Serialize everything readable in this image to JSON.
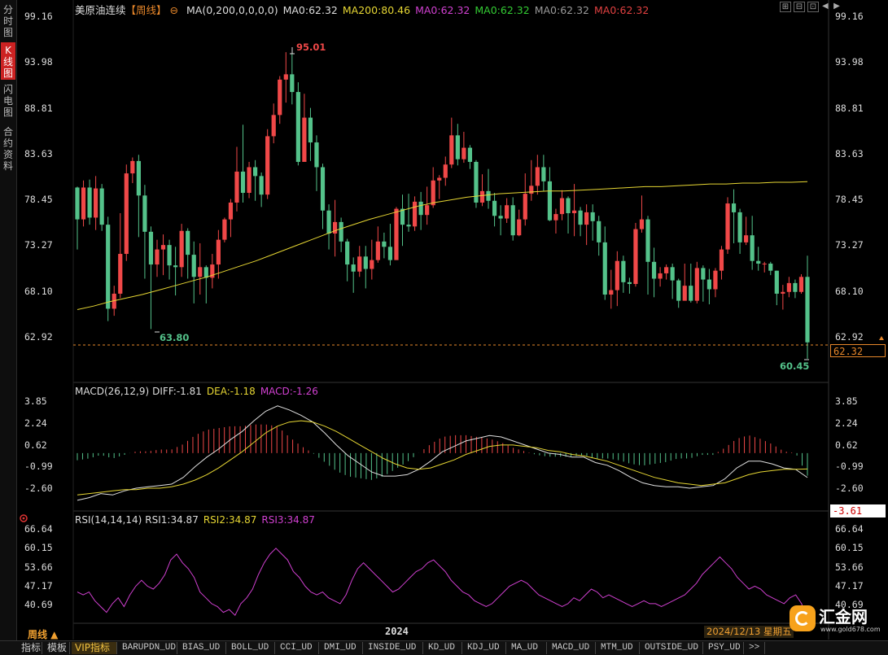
{
  "side_tabs": [
    {
      "label": "分时图",
      "active": false
    },
    {
      "label": "K线图",
      "active": true
    },
    {
      "label": "闪电图",
      "active": false
    },
    {
      "label": "合约资料",
      "active": false
    }
  ],
  "header": {
    "instrument": "美原油连续",
    "period_tag": "【周线】",
    "settings_icon": "⊖",
    "ma_items": [
      {
        "text": "MA(0,200,0,0,0,0)",
        "color": "#dddddd"
      },
      {
        "text": "MA0:62.32",
        "color": "#dddddd"
      },
      {
        "text": "MA200:80.46",
        "color": "#e6d633"
      },
      {
        "text": "MA0:62.32",
        "color": "#d040d0"
      },
      {
        "text": "MA0:62.32",
        "color": "#33cc33"
      },
      {
        "text": "MA0:62.32",
        "color": "#999999"
      },
      {
        "text": "MA0:62.32",
        "color": "#e04040"
      }
    ]
  },
  "window_controls": [
    "⊞",
    "⊟",
    "⊡",
    "◀",
    "▶"
  ],
  "price_axis": {
    "left": [
      "99.16",
      "93.98",
      "88.81",
      "83.63",
      "78.45",
      "73.27",
      "68.10",
      "62.92"
    ],
    "right": [
      "99.16",
      "93.98",
      "88.81",
      "83.63",
      "78.45",
      "73.27",
      "68.10",
      "62.92"
    ],
    "current": "62.32",
    "high_label": "95.01",
    "low_label_left": "63.80",
    "low_label_right": "60.45"
  },
  "macd": {
    "title": "MACD(26,12,9)",
    "diff": "DIFF:-1.81",
    "dea": "DEA:-1.18",
    "macd": "MACD:-1.26",
    "axis": [
      "3.85",
      "2.24",
      "0.62",
      "-0.99",
      "-2.60"
    ],
    "current": "-3.61"
  },
  "rsi": {
    "title": "RSI(14,14,14)",
    "rsi1": "RSI1:34.87",
    "rsi2": "RSI2:34.87",
    "rsi3": "RSI3:34.87",
    "axis_left": [
      "66.64",
      "60.15",
      "53.66",
      "47.17",
      "40.69"
    ],
    "axis_right": [
      "66.64",
      "60.15",
      "53.66",
      "47.17",
      "40.69"
    ]
  },
  "time_axis": {
    "period_button": "周线 ▲",
    "year_label": "2024",
    "date_label": "2024/12/13 星期五"
  },
  "bottom_tabs": [
    "指标",
    "模板",
    "VIP指标",
    "BARUPDN_UD",
    "BIAS_UD",
    "BOLL_UD",
    "CCI_UD",
    "DMI_UD",
    "INSIDE_UD",
    "KD_UD",
    "KDJ_UD",
    "MA_UD",
    "MACD_UD",
    "MTM_UD",
    "OUTSIDE_UD",
    "PSY_UD",
    ">>"
  ],
  "logo": {
    "name": "汇金网",
    "url_text": "www.gold678.com"
  },
  "colors": {
    "up": "#f04848",
    "down": "#54c28a",
    "ma200": "#e6d633",
    "diff": "#e0e0e0",
    "dea": "#e6d633",
    "rsi": "#d040d0",
    "price_line": "#e8872a"
  },
  "chart_data": {
    "type": "candlestick",
    "title": "美原油连续【周线】",
    "ylim": [
      60.45,
      99.16
    ],
    "candles": [
      [
        79.8,
        76.2,
        79.9,
        72.8
      ],
      [
        76.2,
        79.8,
        80.6,
        75.4
      ],
      [
        79.8,
        76.4,
        80.7,
        75.6
      ],
      [
        76.4,
        79.7,
        81.1,
        75.0
      ],
      [
        79.7,
        75.6,
        80.2,
        74.9
      ],
      [
        75.6,
        66.1,
        76.5,
        64.7
      ],
      [
        66.1,
        67.8,
        68.7,
        65.3
      ],
      [
        67.8,
        72.3,
        76.9,
        67.3
      ],
      [
        72.3,
        81.4,
        82.4,
        71.5
      ],
      [
        81.4,
        82.8,
        83.2,
        80.3
      ],
      [
        82.8,
        78.9,
        83.5,
        74.2
      ],
      [
        78.9,
        74.8,
        80.1,
        69.5
      ],
      [
        74.8,
        71.1,
        75.4,
        63.8
      ],
      [
        71.1,
        72.8,
        73.9,
        69.7
      ],
      [
        72.8,
        73.3,
        74.5,
        69.9
      ],
      [
        73.3,
        71.0,
        73.9,
        69.4
      ],
      [
        71.0,
        70.8,
        73.1,
        67.6
      ],
      [
        70.8,
        74.9,
        75.7,
        69.7
      ],
      [
        74.9,
        72.2,
        75.2,
        69.5
      ],
      [
        72.2,
        69.7,
        73.7,
        66.7
      ],
      [
        69.7,
        70.8,
        73.5,
        67.7
      ],
      [
        70.8,
        69.6,
        71.0,
        66.7
      ],
      [
        69.6,
        71.1,
        72.3,
        68.4
      ],
      [
        71.1,
        73.9,
        75.0,
        69.5
      ],
      [
        73.9,
        76.2,
        76.4,
        73.6
      ],
      [
        76.2,
        78.1,
        78.5,
        74.2
      ],
      [
        78.1,
        81.6,
        84.4,
        77.1
      ],
      [
        81.6,
        79.2,
        86.9,
        78.1
      ],
      [
        79.2,
        82.1,
        82.7,
        78.6
      ],
      [
        82.1,
        81.1,
        82.9,
        78.3
      ],
      [
        81.1,
        79.0,
        81.5,
        77.6
      ],
      [
        79.0,
        85.6,
        86.4,
        78.5
      ],
      [
        85.6,
        88.0,
        89.3,
        84.8
      ],
      [
        88.0,
        92.0,
        92.4,
        87.0
      ],
      [
        92.0,
        92.6,
        95.1,
        89.4
      ],
      [
        92.6,
        90.6,
        95.0,
        89.2
      ],
      [
        90.6,
        82.7,
        91.7,
        82.3
      ],
      [
        82.7,
        87.7,
        90.4,
        82.8
      ],
      [
        87.7,
        84.9,
        88.8,
        82.8
      ],
      [
        84.9,
        82.1,
        85.7,
        79.4
      ],
      [
        82.1,
        77.2,
        82.5,
        75.1
      ],
      [
        77.2,
        74.6,
        77.9,
        72.8
      ],
      [
        74.6,
        75.9,
        78.4,
        72.0
      ],
      [
        75.9,
        73.7,
        76.4,
        72.5
      ],
      [
        73.7,
        71.1,
        74.0,
        69.2
      ],
      [
        71.1,
        70.3,
        71.9,
        67.9
      ],
      [
        70.3,
        72.0,
        73.2,
        69.7
      ],
      [
        72.0,
        70.6,
        73.2,
        68.4
      ],
      [
        70.6,
        71.6,
        73.9,
        69.4
      ],
      [
        71.6,
        73.7,
        75.4,
        71.3
      ],
      [
        73.7,
        73.1,
        74.7,
        71.8
      ],
      [
        73.1,
        71.6,
        75.7,
        71.0
      ],
      [
        71.6,
        77.4,
        77.6,
        71.7
      ],
      [
        77.4,
        75.6,
        79.0,
        73.2
      ],
      [
        75.6,
        75.4,
        79.1,
        74.8
      ],
      [
        75.4,
        78.2,
        78.8,
        74.9
      ],
      [
        78.2,
        76.7,
        79.3,
        75.0
      ],
      [
        76.7,
        77.8,
        79.9,
        75.6
      ],
      [
        77.8,
        80.6,
        82.1,
        77.5
      ],
      [
        80.6,
        80.9,
        81.2,
        78.5
      ],
      [
        80.9,
        82.4,
        83.3,
        80.0
      ],
      [
        82.4,
        85.7,
        87.7,
        82.0
      ],
      [
        85.7,
        83.0,
        87.0,
        82.3
      ],
      [
        83.0,
        84.3,
        86.1,
        82.6
      ],
      [
        84.3,
        82.7,
        84.6,
        81.9
      ],
      [
        82.7,
        78.1,
        82.9,
        77.5
      ],
      [
        78.1,
        79.4,
        81.3,
        77.7
      ],
      [
        79.4,
        78.3,
        81.9,
        77.4
      ],
      [
        78.3,
        76.6,
        79.2,
        75.4
      ],
      [
        76.6,
        76.3,
        77.8,
        74.4
      ],
      [
        76.3,
        77.8,
        78.6,
        75.8
      ],
      [
        77.8,
        74.4,
        78.7,
        73.8
      ],
      [
        74.4,
        76.2,
        77.3,
        74.3
      ],
      [
        76.2,
        79.1,
        81.4,
        75.5
      ],
      [
        79.1,
        80.0,
        82.9,
        78.3
      ],
      [
        80.0,
        82.1,
        83.5,
        79.0
      ],
      [
        82.1,
        80.5,
        83.5,
        79.4
      ],
      [
        80.5,
        76.1,
        82.1,
        76.0
      ],
      [
        76.1,
        76.8,
        77.4,
        74.6
      ],
      [
        76.8,
        78.6,
        79.5,
        76.1
      ],
      [
        78.6,
        76.9,
        78.8,
        74.6
      ],
      [
        76.9,
        77.2,
        80.2,
        74.3
      ],
      [
        77.2,
        75.6,
        77.6,
        74.3
      ],
      [
        75.6,
        77.0,
        77.9,
        73.3
      ],
      [
        77.0,
        76.0,
        77.9,
        73.8
      ],
      [
        76.0,
        73.6,
        76.6,
        72.1
      ],
      [
        73.6,
        67.7,
        75.4,
        67.1
      ],
      [
        67.7,
        68.2,
        70.5,
        66.1
      ],
      [
        68.2,
        71.5,
        72.6,
        66.4
      ],
      [
        71.5,
        69.1,
        72.1,
        67.9
      ],
      [
        69.1,
        68.9,
        69.6,
        67.8
      ],
      [
        68.9,
        75.1,
        75.8,
        68.6
      ],
      [
        75.1,
        76.2,
        78.9,
        74.7
      ],
      [
        76.2,
        71.4,
        76.6,
        67.7
      ],
      [
        71.4,
        69.5,
        73.0,
        67.4
      ],
      [
        69.5,
        70.1,
        70.8,
        68.6
      ],
      [
        70.1,
        70.8,
        71.1,
        69.4
      ],
      [
        70.8,
        69.3,
        71.2,
        67.2
      ],
      [
        69.3,
        67.0,
        69.5,
        66.2
      ],
      [
        67.0,
        68.7,
        71.2,
        67.2
      ],
      [
        68.7,
        67.0,
        71.2,
        66.8
      ],
      [
        67.0,
        70.7,
        71.4,
        66.7
      ],
      [
        70.7,
        69.4,
        71.0,
        66.9
      ],
      [
        69.4,
        68.3,
        70.6,
        66.6
      ],
      [
        68.3,
        70.4,
        70.7,
        67.4
      ],
      [
        70.4,
        72.8,
        73.2,
        69.4
      ],
      [
        72.8,
        78.0,
        78.7,
        72.3
      ],
      [
        78.0,
        77.0,
        79.6,
        73.5
      ],
      [
        77.0,
        73.6,
        77.4,
        72.3
      ],
      [
        73.6,
        74.4,
        76.5,
        73.3
      ],
      [
        74.4,
        71.5,
        76.6,
        70.5
      ],
      [
        71.5,
        71.2,
        73.1,
        70.4
      ],
      [
        71.2,
        71.2,
        71.4,
        70.2
      ],
      [
        71.2,
        70.4,
        71.4,
        69.9
      ],
      [
        70.4,
        67.8,
        70.4,
        66.5
      ],
      [
        67.8,
        68.0,
        68.8,
        66.0
      ],
      [
        68.0,
        69.0,
        69.7,
        67.4
      ],
      [
        69.0,
        68.0,
        69.4,
        67.3
      ],
      [
        68.0,
        69.7,
        70.0,
        67.8
      ],
      [
        69.7,
        62.3,
        72.1,
        60.45
      ]
    ],
    "ma200": [
      66.0,
      66.4,
      66.9,
      67.3,
      67.7,
      68.2,
      68.7,
      69.2,
      69.7,
      70.3,
      70.9,
      71.5,
      72.2,
      72.9,
      73.6,
      74.3,
      75.0,
      75.6,
      76.2,
      76.7,
      77.2,
      77.7,
      78.1,
      78.4,
      78.7,
      78.9,
      79.1,
      79.2,
      79.3,
      79.4,
      79.4,
      79.5,
      79.6,
      79.7,
      79.8,
      79.9,
      79.9,
      80.0,
      80.1,
      80.2,
      80.2,
      80.3,
      80.3,
      80.4,
      80.4,
      80.46
    ],
    "macd": {
      "diff": [
        -3.5,
        -3.3,
        -3.0,
        -3.1,
        -2.8,
        -2.6,
        -2.5,
        -2.4,
        -2.3,
        -1.8,
        -1.0,
        -0.3,
        0.3,
        1.0,
        1.6,
        2.4,
        3.1,
        3.5,
        3.2,
        2.8,
        2.3,
        1.5,
        0.6,
        -0.2,
        -0.8,
        -1.4,
        -1.7,
        -1.7,
        -1.6,
        -1.2,
        -0.6,
        0.1,
        0.5,
        0.9,
        1.1,
        1.3,
        1.2,
        0.9,
        0.6,
        0.3,
        0.0,
        -0.1,
        -0.3,
        -0.3,
        -0.7,
        -0.9,
        -1.3,
        -1.8,
        -2.2,
        -2.4,
        -2.5,
        -2.5,
        -2.6,
        -2.5,
        -2.4,
        -1.9,
        -1.1,
        -0.6,
        -0.6,
        -0.8,
        -1.1,
        -1.2,
        -1.81
      ],
      "dea": [
        -3.1,
        -3.0,
        -2.9,
        -2.8,
        -2.7,
        -2.7,
        -2.6,
        -2.6,
        -2.5,
        -2.3,
        -2.0,
        -1.6,
        -1.1,
        -0.5,
        0.1,
        0.8,
        1.5,
        2.0,
        2.3,
        2.4,
        2.3,
        2.0,
        1.6,
        1.1,
        0.6,
        0.1,
        -0.4,
        -0.8,
        -1.1,
        -1.2,
        -1.1,
        -0.8,
        -0.5,
        -0.1,
        0.2,
        0.5,
        0.6,
        0.6,
        0.5,
        0.4,
        0.2,
        0.1,
        -0.1,
        -0.2,
        -0.4,
        -0.6,
        -0.9,
        -1.2,
        -1.5,
        -1.8,
        -2.0,
        -2.2,
        -2.3,
        -2.4,
        -2.3,
        -2.2,
        -1.9,
        -1.6,
        -1.4,
        -1.3,
        -1.2,
        -1.2,
        -1.18
      ],
      "histogram": [
        -0.4,
        -0.3,
        -0.1,
        -0.3,
        -0.1,
        0.1,
        0.1,
        0.2,
        0.2,
        0.5,
        1.0,
        1.3,
        1.4,
        1.5,
        1.5,
        1.6,
        1.6,
        1.5,
        0.9,
        0.4,
        0.0,
        -0.5,
        -1.0,
        -1.3,
        -1.4,
        -1.5,
        -1.3,
        -0.9,
        -0.5,
        0.0,
        0.5,
        0.9,
        1.0,
        1.0,
        0.9,
        0.8,
        0.6,
        0.3,
        0.1,
        -0.1,
        -0.2,
        -0.2,
        -0.2,
        -0.1,
        -0.3,
        -0.3,
        -0.4,
        -0.6,
        -0.7,
        -0.6,
        -0.5,
        -0.3,
        -0.3,
        -0.1,
        -0.1,
        0.3,
        0.8,
        1.0,
        0.8,
        0.5,
        0.1,
        0.0,
        -1.26
      ]
    },
    "rsi": [
      45,
      44,
      45,
      42,
      40,
      38,
      41,
      43,
      40,
      44,
      47,
      49,
      47,
      46,
      48,
      51,
      56,
      58,
      55,
      53,
      50,
      45,
      43,
      41,
      40,
      38,
      39,
      37,
      41,
      43,
      46,
      51,
      55,
      58,
      60,
      58,
      56,
      52,
      50,
      47,
      45,
      44,
      45,
      43,
      42,
      41,
      44,
      49,
      53,
      55,
      53,
      51,
      49,
      47,
      45,
      46,
      48,
      50,
      52,
      53,
      55,
      56,
      54,
      52,
      49,
      47,
      45,
      44,
      42,
      41,
      40,
      41,
      43,
      45,
      47,
      48,
      49,
      48,
      46,
      44,
      43,
      42,
      41,
      40,
      41,
      43,
      42,
      44,
      46,
      45,
      43,
      44,
      43,
      42,
      41,
      40,
      41,
      42,
      41,
      41,
      40,
      41,
      42,
      43,
      44,
      46,
      48,
      51,
      53,
      55,
      57,
      55,
      53,
      50,
      48,
      46,
      47,
      46,
      44,
      43,
      42,
      41,
      43,
      44,
      41,
      35
    ]
  }
}
